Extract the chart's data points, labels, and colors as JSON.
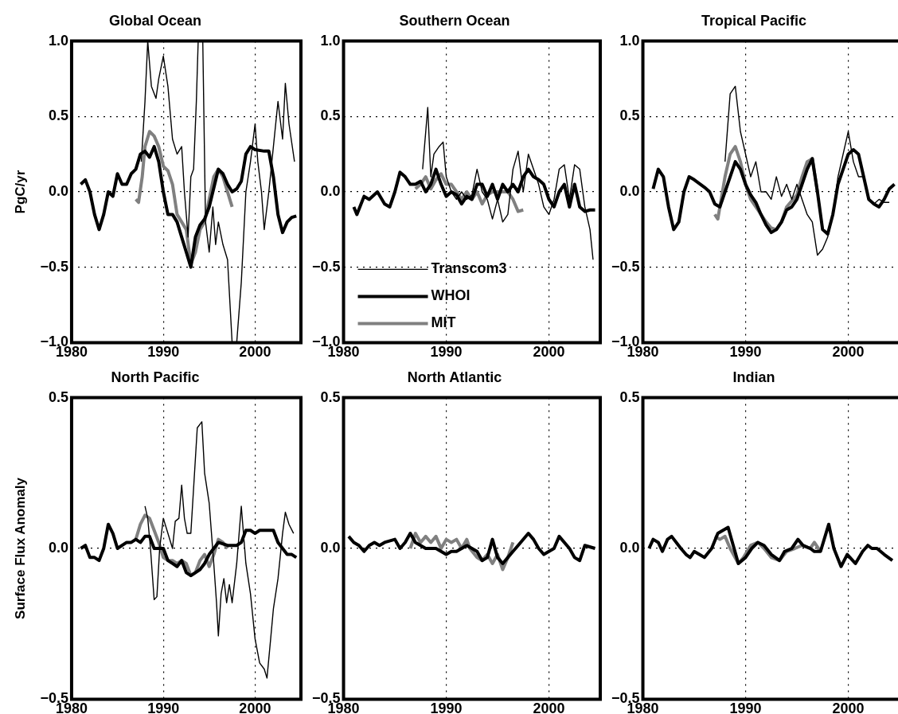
{
  "chart_data": [
    {
      "type": "line",
      "title": "Global Ocean",
      "ylabel": "PgC/yr",
      "xlim": [
        1980,
        2005
      ],
      "xticks": [
        1980,
        1990,
        2000
      ],
      "ylim": [
        -1,
        1
      ],
      "yticks": [
        {
          "value": -1,
          "label": "−1.0"
        },
        {
          "value": -0.5,
          "label": "−0.5"
        },
        {
          "value": 0,
          "label": "0.0"
        },
        {
          "value": 0.5,
          "label": "0.5"
        },
        {
          "value": 1,
          "label": "1.0"
        }
      ],
      "grid": true,
      "series": [
        {
          "color": "#000000",
          "x": [
            1987.6,
            1988,
            1988.3,
            1988.7,
            1989.2,
            1989.5,
            1990,
            1990.5,
            1991,
            1991.5,
            1992,
            1992.3,
            1992.7,
            1993,
            1993.3,
            1993.6,
            1993.8,
            1994.3,
            1994.6,
            1995,
            1995.4,
            1995.7,
            1996,
            1996.5,
            1997,
            1997.5,
            1998,
            1998.5,
            1999,
            1999.5,
            2000,
            2000.3,
            2000.7,
            2001,
            2001.5,
            2002,
            2002.5,
            2003,
            2003.3,
            2003.7,
            2004.3
          ],
          "values": [
            0.2,
            0.6,
            1,
            0.7,
            0.62,
            0.75,
            0.9,
            0.7,
            0.35,
            0.25,
            0.3,
            0,
            -0.3,
            0.1,
            0.15,
            0.6,
            1,
            1,
            -0.2,
            -0.4,
            -0.1,
            -0.35,
            -0.2,
            -0.35,
            -0.45,
            -1,
            -1,
            -0.6,
            0,
            0.2,
            0.45,
            0.2,
            0,
            -0.25,
            0,
            0.3,
            0.6,
            0.35,
            0.72,
            0.45,
            0.2
          ]
        },
        {
          "color": "#000000",
          "x": [
            1981,
            1981.5,
            1982,
            1982.5,
            1983,
            1983.5,
            1984,
            1984.5,
            1985,
            1985.5,
            1986,
            1986.5,
            1987,
            1987.5,
            1988,
            1988.5,
            1989,
            1989.5,
            1990,
            1990.5,
            1991,
            1991.5,
            1992,
            1992.5,
            1993,
            1993.5,
            1994,
            1994.5,
            1995,
            1996,
            1996.5,
            1997,
            1997.5,
            1998,
            1998.5,
            1999,
            1999.5,
            2000,
            2001,
            2001.5,
            2002,
            2002.5,
            2003,
            2003.5,
            2004,
            2004.5
          ],
          "values": [
            0.05,
            0.08,
            0,
            -0.15,
            -0.25,
            -0.15,
            0,
            -0.03,
            0.12,
            0.05,
            0.05,
            0.12,
            0.15,
            0.25,
            0.27,
            0.23,
            0.3,
            0.2,
            0,
            -0.15,
            -0.15,
            -0.2,
            -0.3,
            -0.4,
            -0.5,
            -0.3,
            -0.22,
            -0.18,
            -0.1,
            0.15,
            0.12,
            0.05,
            0,
            0.02,
            0.07,
            0.25,
            0.3,
            0.28,
            0.27,
            0.27,
            0.1,
            -0.15,
            -0.27,
            -0.2,
            -0.17,
            -0.16
          ]
        },
        {
          "color": "#808080",
          "x": [
            1987,
            1987.3,
            1987.7,
            1988,
            1988.5,
            1989,
            1989.5,
            1990,
            1990.5,
            1991,
            1991.5,
            1992,
            1992.5,
            1993,
            1993.5,
            1994,
            1994.5,
            1995,
            1995.5,
            1996,
            1996.5,
            1997,
            1997.5
          ],
          "values": [
            -0.05,
            -0.07,
            0.1,
            0.3,
            0.4,
            0.37,
            0.3,
            0.17,
            0.14,
            0.05,
            -0.15,
            -0.2,
            -0.25,
            -0.48,
            -0.4,
            -0.25,
            -0.2,
            -0.05,
            0.1,
            0.15,
            0.1,
            0,
            -0.1
          ]
        }
      ]
    },
    {
      "type": "line",
      "title": "Southern Ocean",
      "xlim": [
        1980,
        2005
      ],
      "xticks": [
        1980,
        1990,
        2000
      ],
      "ylim": [
        -1,
        1
      ],
      "yticks": [
        {
          "value": -1,
          "label": "−1.0"
        },
        {
          "value": -0.5,
          "label": "−0.5"
        },
        {
          "value": 0,
          "label": "0.0"
        },
        {
          "value": 0.5,
          "label": "0.5"
        },
        {
          "value": 1,
          "label": "1.0"
        }
      ],
      "grid": true,
      "legend": "bottom left",
      "series": [
        {
          "name": "Transcom3",
          "color": "#000000",
          "x": [
            1987.7,
            1988.2,
            1988.5,
            1988.8,
            1989.3,
            1989.7,
            1990,
            1990.5,
            1991,
            1991.5,
            1992,
            1992.5,
            1993,
            1993.5,
            1994,
            1994.5,
            1995,
            1995.5,
            1996,
            1996.5,
            1997,
            1997.5,
            1998,
            1998.5,
            1999,
            1999.5,
            2000,
            2000.5,
            2001,
            2001.5,
            2002,
            2002.5,
            2003,
            2003.5,
            2004,
            2004.3
          ],
          "values": [
            0.15,
            0.56,
            0.1,
            0.25,
            0.3,
            0.33,
            0.1,
            0,
            -0.05,
            0,
            -0.05,
            -0.02,
            0.15,
            0,
            -0.05,
            -0.18,
            -0.05,
            -0.2,
            -0.15,
            0.15,
            0.27,
            0,
            0.25,
            0.15,
            0.05,
            -0.1,
            -0.15,
            -0.05,
            0.15,
            0.18,
            -0.05,
            0.18,
            0.15,
            -0.1,
            -0.25,
            -0.45
          ]
        },
        {
          "name": "WHOI",
          "color": "#000000",
          "x": [
            1981,
            1981.3,
            1982,
            1982.5,
            1983.3,
            1984,
            1984.5,
            1985,
            1985.5,
            1986,
            1986.5,
            1987,
            1987.5,
            1988,
            1988.5,
            1989,
            1989.5,
            1990,
            1990.5,
            1991,
            1991.5,
            1992,
            1992.5,
            1993,
            1993.5,
            1994,
            1994.5,
            1995,
            1995.5,
            1996,
            1996.5,
            1997,
            1997.5,
            1998,
            1998.5,
            1999,
            1999.5,
            2000,
            2000.5,
            2001,
            2001.5,
            2002,
            2002.5,
            2003,
            2003.5,
            2004,
            2004.5
          ],
          "values": [
            -0.1,
            -0.15,
            -0.03,
            -0.05,
            0,
            -0.08,
            -0.1,
            0,
            0.13,
            0.1,
            0.05,
            0.05,
            0.07,
            0,
            0.05,
            0.15,
            0.05,
            -0.03,
            0,
            -0.02,
            -0.08,
            -0.03,
            -0.05,
            0.05,
            0.05,
            -0.03,
            0.05,
            -0.05,
            0.05,
            0,
            0.05,
            0,
            0.1,
            0.15,
            0.1,
            0.08,
            0.05,
            -0.05,
            -0.1,
            0,
            0.05,
            -0.1,
            0.05,
            -0.1,
            -0.13,
            -0.12,
            -0.12
          ]
        },
        {
          "name": "MIT",
          "color": "#808080",
          "x": [
            1987,
            1987.5,
            1988,
            1988.5,
            1989,
            1989.5,
            1990,
            1990.5,
            1991,
            1991.5,
            1992,
            1992.5,
            1993,
            1993.5,
            1994,
            1994.5,
            1995,
            1996,
            1996.5,
            1997,
            1997.5
          ],
          "values": [
            0.02,
            0.05,
            0.1,
            0.02,
            0.08,
            0.12,
            0.05,
            0.05,
            0,
            -0.05,
            0,
            -0.05,
            0,
            -0.08,
            -0.02,
            0,
            0,
            0,
            -0.05,
            -0.13,
            -0.12
          ]
        }
      ]
    },
    {
      "type": "line",
      "title": "Tropical Pacific",
      "xlim": [
        1980,
        2005
      ],
      "xticks": [
        1980,
        1990,
        2000
      ],
      "ylim": [
        -1,
        1
      ],
      "yticks": [
        {
          "value": -1,
          "label": "−1.0"
        },
        {
          "value": -0.5,
          "label": "−0.5"
        },
        {
          "value": 0,
          "label": "0.0"
        },
        {
          "value": 0.5,
          "label": "0.5"
        },
        {
          "value": 1,
          "label": "1.0"
        }
      ],
      "grid": true,
      "series": [
        {
          "color": "#000000",
          "x": [
            1988,
            1988.5,
            1989,
            1989.5,
            1990,
            1990.5,
            1991,
            1991.5,
            1992,
            1992.5,
            1993,
            1993.5,
            1994,
            1994.5,
            1995,
            1995.5,
            1996,
            1996.5,
            1997,
            1997.5,
            1998,
            1998.5,
            1999,
            1999.5,
            2000,
            2000.5,
            2001,
            2001.5,
            2002,
            2002.5,
            2003,
            2003.5,
            2004
          ],
          "values": [
            0.2,
            0.65,
            0.7,
            0.4,
            0.25,
            0.1,
            0.2,
            0,
            0,
            -0.05,
            0.1,
            -0.03,
            0.05,
            -0.05,
            0.05,
            -0.05,
            -0.15,
            -0.2,
            -0.42,
            -0.38,
            -0.3,
            -0.15,
            0.1,
            0.25,
            0.4,
            0.2,
            0.1,
            0.1,
            -0.05,
            -0.08,
            -0.05,
            -0.07,
            -0.07
          ]
        },
        {
          "color": "#000000",
          "x": [
            1981,
            1981.5,
            1982,
            1982.5,
            1983,
            1983.5,
            1984,
            1984.5,
            1985,
            1986,
            1986.5,
            1987,
            1987.5,
            1988,
            1988.5,
            1989,
            1989.5,
            1990,
            1990.5,
            1991,
            1991.5,
            1992,
            1992.5,
            1993,
            1993.5,
            1994,
            1994.5,
            1995,
            1995.5,
            1996,
            1996.5,
            1997,
            1997.5,
            1998,
            1998.5,
            1999,
            1999.5,
            2000,
            2000.5,
            2001,
            2001.5,
            2002,
            2002.5,
            2003,
            2003.5,
            2004,
            2004.5
          ],
          "values": [
            0.02,
            0.15,
            0.1,
            -0.1,
            -0.25,
            -0.2,
            0,
            0.1,
            0.08,
            0.03,
            0,
            -0.08,
            -0.1,
            0,
            0.1,
            0.2,
            0.15,
            0.05,
            -0.02,
            -0.07,
            -0.15,
            -0.22,
            -0.27,
            -0.25,
            -0.2,
            -0.12,
            -0.1,
            -0.05,
            0.05,
            0.15,
            0.22,
            0,
            -0.25,
            -0.28,
            -0.15,
            0.05,
            0.15,
            0.25,
            0.28,
            0.25,
            0.1,
            -0.05,
            -0.08,
            -0.1,
            -0.05,
            0.02,
            0.05
          ]
        },
        {
          "color": "#808080",
          "x": [
            1987,
            1987.3,
            1988,
            1988.5,
            1989,
            1989.5,
            1990,
            1990.5,
            1991,
            1991.5,
            1992,
            1992.5,
            1993,
            1993.5,
            1994,
            1995,
            1995.5,
            1996,
            1996.5,
            1997
          ],
          "values": [
            -0.15,
            -0.18,
            0.1,
            0.25,
            0.3,
            0.2,
            0.05,
            -0.05,
            -0.1,
            -0.15,
            -0.2,
            -0.24,
            -0.25,
            -0.2,
            -0.1,
            -0.02,
            0.1,
            0.2,
            0.22,
            0
          ]
        }
      ]
    },
    {
      "type": "line",
      "title": "North Pacific",
      "ylabel": "Surface Flux Anomaly",
      "xlim": [
        1980,
        2005
      ],
      "xticks": [
        1980,
        1990,
        2000
      ],
      "ylim": [
        -0.5,
        0.5
      ],
      "yticks": [
        {
          "value": -0.5,
          "label": "−0.5"
        },
        {
          "value": 0,
          "label": "0.0"
        },
        {
          "value": 0.5,
          "label": "0.5"
        }
      ],
      "grid": true,
      "series": [
        {
          "color": "#000000",
          "x": [
            1988,
            1988.3,
            1988.6,
            1989,
            1989.3,
            1989.6,
            1990,
            1990.5,
            1991,
            1991.3,
            1991.7,
            1992,
            1992.3,
            1992.6,
            1993,
            1993.3,
            1993.7,
            1994.2,
            1994.5,
            1995,
            1995.5,
            1995.8,
            1996,
            1996.3,
            1996.6,
            1996.9,
            1997.2,
            1997.5,
            1998,
            1998.5,
            1999,
            1999.5,
            2000,
            2000.5,
            2001,
            2001.3,
            2001.7,
            2002,
            2002.5,
            2003,
            2003.3,
            2003.7,
            2004.2
          ],
          "values": [
            0.14,
            0.1,
            0,
            -0.17,
            -0.16,
            0,
            0.1,
            0.05,
            0,
            0.09,
            0.1,
            0.21,
            0.1,
            0.05,
            0.05,
            0.2,
            0.4,
            0.42,
            0.25,
            0.15,
            -0.05,
            -0.18,
            -0.29,
            -0.15,
            -0.1,
            -0.18,
            -0.12,
            -0.18,
            -0.05,
            0.14,
            -0.05,
            -0.15,
            -0.3,
            -0.38,
            -0.4,
            -0.43,
            -0.3,
            -0.2,
            -0.1,
            0.05,
            0.12,
            0.08,
            0.05
          ]
        },
        {
          "color": "#000000",
          "x": [
            1981,
            1981.5,
            1982,
            1982.5,
            1983,
            1983.5,
            1984,
            1984.5,
            1985,
            1986,
            1986.5,
            1987,
            1987.5,
            1988,
            1988.5,
            1989,
            1990,
            1990.5,
            1991,
            1991.5,
            1992,
            1992.5,
            1993,
            1993.5,
            1994,
            1994.5,
            1995,
            1995.5,
            1996,
            1997,
            1998,
            1998.5,
            1999,
            1999.5,
            2000,
            2000.5,
            2001,
            2002,
            2002.5,
            2003,
            2003.5,
            2004,
            2004.5
          ],
          "values": [
            0,
            0.01,
            -0.03,
            -0.03,
            -0.04,
            0,
            0.08,
            0.05,
            0,
            0.02,
            0.02,
            0.03,
            0.02,
            0.04,
            0.04,
            0,
            0,
            -0.04,
            -0.05,
            -0.06,
            -0.04,
            -0.08,
            -0.09,
            -0.08,
            -0.07,
            -0.05,
            -0.02,
            0,
            0.02,
            0.01,
            0.01,
            0.02,
            0.06,
            0.06,
            0.05,
            0.06,
            0.06,
            0.06,
            0.02,
            0,
            -0.02,
            -0.02,
            -0.03
          ]
        },
        {
          "color": "#808080",
          "x": [
            1987,
            1987.5,
            1988,
            1988.5,
            1989,
            1989.5,
            1990,
            1990.5,
            1991,
            1991.5,
            1992,
            1992.5,
            1993,
            1993.5,
            1994,
            1994.5,
            1995,
            1995.5,
            1996,
            1996.5,
            1997
          ],
          "values": [
            0.03,
            0.08,
            0.11,
            0.1,
            0.06,
            0.02,
            -0.03,
            -0.04,
            -0.04,
            -0.05,
            -0.04,
            -0.05,
            -0.09,
            -0.08,
            -0.04,
            -0.02,
            -0.06,
            -0.02,
            0.03,
            0.02,
            0
          ]
        }
      ]
    },
    {
      "type": "line",
      "title": "North Atlantic",
      "xlim": [
        1980,
        2005
      ],
      "xticks": [
        1980,
        1990,
        2000
      ],
      "ylim": [
        -0.5,
        0.5
      ],
      "yticks": [
        {
          "value": -0.5,
          "label": "−0.5"
        },
        {
          "value": 0,
          "label": "0.0"
        },
        {
          "value": 0.5,
          "label": "0.5"
        }
      ],
      "grid": true,
      "series": [
        {
          "color": "#000000",
          "x": [
            1980.5,
            1981,
            1981.5,
            1982,
            1982.5,
            1983,
            1983.5,
            1984,
            1985,
            1985.5,
            1986,
            1986.5,
            1987,
            1988,
            1989,
            1990,
            1990.5,
            1991,
            1992,
            1992.5,
            1993,
            1993.5,
            1994,
            1994.5,
            1995,
            1995.5,
            1996,
            1996.5,
            1997,
            1998,
            1998.5,
            1999,
            1999.5,
            2000,
            2000.5,
            2001,
            2002,
            2002.5,
            2003,
            2003.5,
            2004.5
          ],
          "values": [
            0.04,
            0.02,
            0.01,
            -0.01,
            0.01,
            0.02,
            0.01,
            0.02,
            0.03,
            0,
            0.02,
            0.05,
            0.02,
            0,
            0,
            -0.02,
            -0.01,
            -0.01,
            0.01,
            0,
            -0.01,
            -0.04,
            -0.03,
            0.03,
            -0.03,
            -0.05,
            -0.03,
            -0.01,
            0.01,
            0.05,
            0.03,
            0,
            -0.02,
            -0.01,
            0,
            0.04,
            0,
            -0.03,
            -0.04,
            0.01,
            0
          ]
        },
        {
          "color": "#808080",
          "x": [
            1986.5,
            1987,
            1987.5,
            1988,
            1988.5,
            1989,
            1989.5,
            1990,
            1990.5,
            1991,
            1991.5,
            1992,
            1992.3,
            1993,
            1993.5,
            1994,
            1994.5,
            1995,
            1995.5,
            1996,
            1996.5
          ],
          "values": [
            0,
            0.05,
            0.02,
            0.04,
            0.02,
            0.04,
            0,
            0.03,
            0.02,
            0.03,
            0,
            0.03,
            0,
            -0.03,
            -0.04,
            -0.02,
            -0.05,
            -0.02,
            -0.07,
            -0.03,
            0.02
          ]
        }
      ]
    },
    {
      "type": "line",
      "title": "Indian",
      "xlim": [
        1980,
        2005
      ],
      "xticks": [
        1980,
        1990,
        2000
      ],
      "ylim": [
        -0.5,
        0.5
      ],
      "yticks": [
        {
          "value": -0.5,
          "label": "−0.5"
        },
        {
          "value": 0,
          "label": "0.0"
        },
        {
          "value": 0.5,
          "label": "0.5"
        }
      ],
      "grid": true,
      "series": [
        {
          "color": "#000000",
          "x": [
            1980.6,
            1981,
            1981.5,
            1981.9,
            1982.4,
            1982.8,
            1983.7,
            1984.2,
            1984.6,
            1985,
            1985.5,
            1986,
            1986.7,
            1987.3,
            1987.8,
            1988.3,
            1988.8,
            1989.3,
            1990,
            1990.6,
            1991.2,
            1991.8,
            1992.5,
            1993.3,
            1993.8,
            1994.5,
            1995.1,
            1995.6,
            1996.3,
            1996.7,
            1997.3,
            1998.1,
            1998.6,
            1999.3,
            1999.9,
            2000.7,
            2001.4,
            2001.9,
            2002.3,
            2002.8,
            2003.5,
            2004.3
          ],
          "values": [
            0,
            0.03,
            0.02,
            -0.01,
            0.03,
            0.04,
            0,
            -0.02,
            -0.03,
            -0.01,
            -0.02,
            -0.03,
            0,
            0.05,
            0.06,
            0.07,
            0.01,
            -0.05,
            -0.03,
            0,
            0.02,
            0.01,
            -0.02,
            -0.04,
            -0.01,
            0,
            0.03,
            0.01,
            0,
            -0.01,
            -0.01,
            0.08,
            0,
            -0.06,
            -0.02,
            -0.05,
            -0.01,
            0.01,
            0,
            0,
            -0.02,
            -0.04
          ]
        },
        {
          "color": "#808080",
          "x": [
            1987,
            1987.5,
            1988,
            1988.5,
            1989.3,
            1989.8,
            1990.5,
            1991.2,
            1991.8,
            1992.5,
            1993.3,
            1994,
            1994.8,
            1995.5,
            1996.3,
            1996.7,
            1997.3
          ],
          "values": [
            0.04,
            0.03,
            0.04,
            0,
            -0.05,
            -0.03,
            0.01,
            0.02,
            0,
            -0.03,
            -0.04,
            -0.01,
            0,
            0.01,
            0,
            0.02,
            -0.01
          ]
        }
      ]
    }
  ]
}
